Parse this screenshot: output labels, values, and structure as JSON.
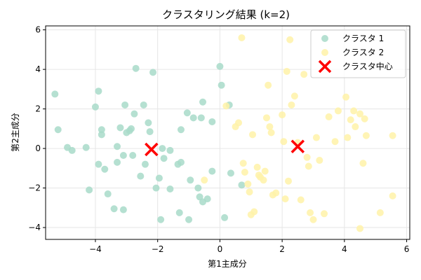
{
  "chart_data": {
    "type": "scatter",
    "title": "クラスタリング結果 (k=2)",
    "xlabel": "第1主成分",
    "ylabel": "第2主成分",
    "xlim": [
      -5.6,
      6.1
    ],
    "ylim": [
      -4.6,
      6.2
    ],
    "xticks": [
      "−4",
      "−2",
      "0",
      "2",
      "4",
      "6"
    ],
    "xtick_values": [
      -4,
      -2,
      0,
      2,
      4,
      6
    ],
    "yticks": [
      "−4",
      "−2",
      "0",
      "2",
      "4",
      "6"
    ],
    "ytick_values": [
      -4,
      -2,
      0,
      2,
      4,
      6
    ],
    "grid": true,
    "legend_position": "top-right",
    "series": [
      {
        "name": "クラスタ 1",
        "color": "#a8dbc9",
        "points": [
          [
            -5.3,
            2.75
          ],
          [
            -5.2,
            0.95
          ],
          [
            -4.9,
            0.05
          ],
          [
            -4.75,
            -0.1
          ],
          [
            -4.3,
            0.05
          ],
          [
            -4.2,
            -2.1
          ],
          [
            -4.0,
            2.1
          ],
          [
            -3.9,
            2.9
          ],
          [
            -3.9,
            -0.8
          ],
          [
            -3.8,
            0.95
          ],
          [
            -3.8,
            0.7
          ],
          [
            -3.7,
            -1.05
          ],
          [
            -3.6,
            -2.3
          ],
          [
            -3.4,
            -3.05
          ],
          [
            -3.3,
            -0.7
          ],
          [
            -3.3,
            0.1
          ],
          [
            -3.2,
            1.05
          ],
          [
            -3.1,
            -0.35
          ],
          [
            -3.1,
            -3.1
          ],
          [
            -3.05,
            2.2
          ],
          [
            -3.0,
            0.8
          ],
          [
            -2.9,
            0.9
          ],
          [
            -2.85,
            1.0
          ],
          [
            -2.8,
            -0.35
          ],
          [
            -2.75,
            1.75
          ],
          [
            -2.7,
            4.05
          ],
          [
            -2.55,
            -1.4
          ],
          [
            -2.45,
            2.2
          ],
          [
            -2.4,
            -0.8
          ],
          [
            -2.3,
            1.3
          ],
          [
            -2.25,
            0.85
          ],
          [
            -2.15,
            3.85
          ],
          [
            -2.05,
            -2.0
          ],
          [
            -1.95,
            -1.5
          ],
          [
            -1.9,
            -3.6
          ],
          [
            -1.85,
            0.0
          ],
          [
            -1.8,
            -0.5
          ],
          [
            -1.6,
            -0.1
          ],
          [
            -1.6,
            -2.05
          ],
          [
            -1.35,
            -0.8
          ],
          [
            -1.3,
            -3.25
          ],
          [
            -1.25,
            0.95
          ],
          [
            -1.25,
            -0.7
          ],
          [
            -1.05,
            1.8
          ],
          [
            -1.0,
            -3.6
          ],
          [
            -0.95,
            -1.6
          ],
          [
            -0.85,
            1.55
          ],
          [
            -0.7,
            -2.0
          ],
          [
            -0.65,
            -2.45
          ],
          [
            -0.6,
            1.55
          ],
          [
            -0.55,
            2.35
          ],
          [
            -0.55,
            -2.7
          ],
          [
            -0.4,
            -2.55
          ],
          [
            -0.25,
            1.35
          ],
          [
            -0.25,
            -1.15
          ],
          [
            0.0,
            4.15
          ],
          [
            0.05,
            3.2
          ],
          [
            0.15,
            -3.5
          ],
          [
            0.3,
            2.2
          ],
          [
            0.35,
            -1.25
          ],
          [
            0.7,
            -1.85
          ]
        ]
      },
      {
        "name": "クラスタ 2",
        "color": "#fff2a8",
        "points": [
          [
            -0.5,
            -1.6
          ],
          [
            0.2,
            2.15
          ],
          [
            0.5,
            1.1
          ],
          [
            0.6,
            1.3
          ],
          [
            0.7,
            5.6
          ],
          [
            0.75,
            -0.75
          ],
          [
            0.8,
            -1.2
          ],
          [
            0.9,
            -1.8
          ],
          [
            0.95,
            -2.2
          ],
          [
            1.0,
            -3.35
          ],
          [
            1.05,
            0.7
          ],
          [
            1.1,
            -3.2
          ],
          [
            1.2,
            -0.95
          ],
          [
            1.25,
            -1.35
          ],
          [
            1.3,
            -1.45
          ],
          [
            1.4,
            -1.6
          ],
          [
            1.45,
            -1.15
          ],
          [
            1.5,
            1.55
          ],
          [
            1.55,
            3.2
          ],
          [
            1.6,
            1.1
          ],
          [
            1.65,
            0.8
          ],
          [
            1.7,
            -2.35
          ],
          [
            1.8,
            -2.25
          ],
          [
            2.0,
            1.7
          ],
          [
            2.05,
            0.35
          ],
          [
            2.1,
            -2.55
          ],
          [
            2.15,
            3.9
          ],
          [
            2.2,
            -1.65
          ],
          [
            2.25,
            5.5
          ],
          [
            2.3,
            2.2
          ],
          [
            2.4,
            2.65
          ],
          [
            2.5,
            0.3
          ],
          [
            2.6,
            -2.6
          ],
          [
            2.7,
            3.75
          ],
          [
            2.8,
            -0.45
          ],
          [
            2.85,
            -0.9
          ],
          [
            2.9,
            -3.25
          ],
          [
            3.0,
            -3.6
          ],
          [
            3.1,
            0.55
          ],
          [
            3.2,
            -0.6
          ],
          [
            3.35,
            -3.3
          ],
          [
            3.5,
            1.6
          ],
          [
            3.7,
            0.35
          ],
          [
            3.8,
            1.9
          ],
          [
            4.05,
            2.6
          ],
          [
            4.1,
            0.55
          ],
          [
            4.2,
            1.45
          ],
          [
            4.3,
            1.9
          ],
          [
            4.35,
            1.1
          ],
          [
            4.5,
            -4.05
          ],
          [
            4.5,
            1.75
          ],
          [
            4.6,
            -0.75
          ],
          [
            4.65,
            1.5
          ],
          [
            4.7,
            0.65
          ],
          [
            5.15,
            -3.25
          ],
          [
            5.55,
            0.65
          ],
          [
            5.55,
            -2.4
          ]
        ]
      },
      {
        "name": "クラスタ中心",
        "color": "#ff0000",
        "marker": "x",
        "points": [
          [
            -2.2,
            -0.05
          ],
          [
            2.5,
            0.1
          ]
        ]
      }
    ]
  }
}
